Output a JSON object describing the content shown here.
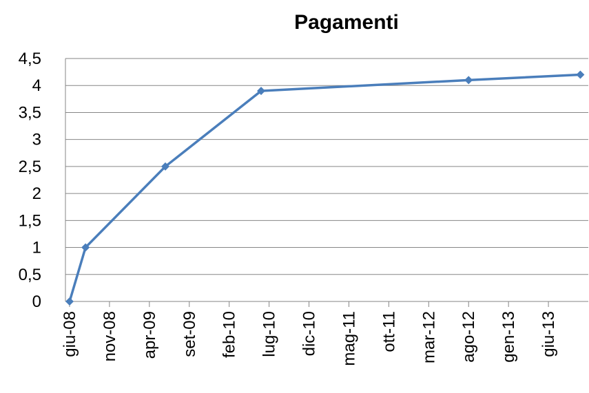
{
  "chart_data": {
    "type": "line",
    "title": "Pagamenti",
    "x": [
      "2008-06",
      "2008-08",
      "2009-06",
      "2010-06",
      "2012-08",
      "2013-10"
    ],
    "series": [
      {
        "name": "Pagamenti",
        "color": "#4a7ebb",
        "values": [
          0,
          1,
          2.5,
          3.9,
          4.1,
          4.2
        ]
      }
    ],
    "xlim": [
      "2008-06",
      "2013-11"
    ],
    "xticks": [
      {
        "value": "2008-06",
        "label": "giu-08"
      },
      {
        "value": "2008-11",
        "label": "nov-08"
      },
      {
        "value": "2009-04",
        "label": "apr-09"
      },
      {
        "value": "2009-09",
        "label": "set-09"
      },
      {
        "value": "2010-02",
        "label": "feb-10"
      },
      {
        "value": "2010-07",
        "label": "lug-10"
      },
      {
        "value": "2010-12",
        "label": "dic-10"
      },
      {
        "value": "2011-05",
        "label": "mag-11"
      },
      {
        "value": "2011-10",
        "label": "ott-11"
      },
      {
        "value": "2012-03",
        "label": "mar-12"
      },
      {
        "value": "2012-08",
        "label": "ago-12"
      },
      {
        "value": "2013-01",
        "label": "gen-13"
      },
      {
        "value": "2013-06",
        "label": "giu-13"
      }
    ],
    "ylim": [
      0,
      4.5
    ],
    "yticks": [
      0,
      {
        "value": 0.5,
        "label": "0,5"
      },
      1,
      {
        "value": 1.5,
        "label": "1,5"
      },
      2,
      {
        "value": 2.5,
        "label": "2,5"
      },
      3,
      {
        "value": 3.5,
        "label": "3,5"
      },
      4,
      {
        "value": 4.5,
        "label": "4,5"
      }
    ],
    "grid": true
  }
}
